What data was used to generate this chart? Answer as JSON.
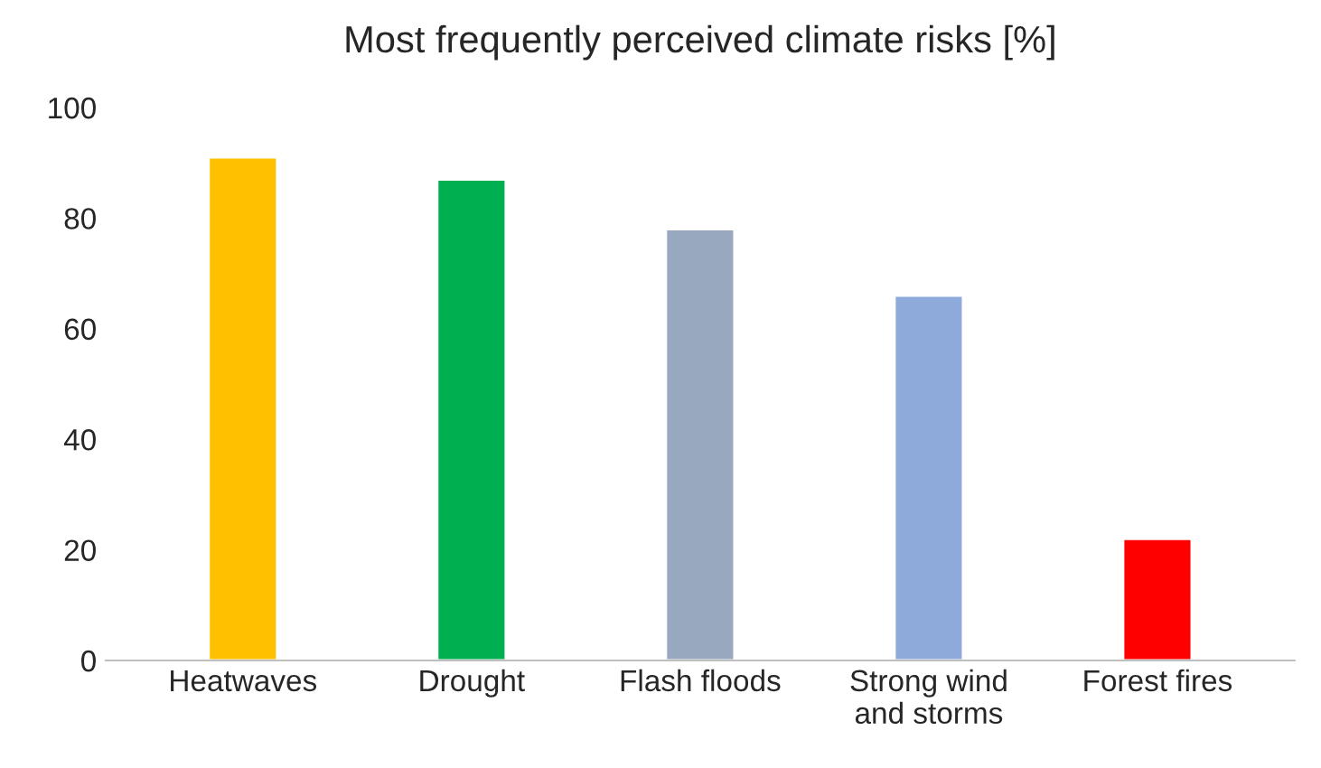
{
  "chart_data": {
    "type": "bar",
    "title": "Most frequently perceived climate risks [%]",
    "categories": [
      "Heatwaves",
      "Drought",
      "Flash floods",
      "Strong wind\nand storms",
      "Forest fires"
    ],
    "values": [
      91,
      87,
      78,
      66,
      22
    ],
    "colors": [
      "#ffc000",
      "#00b050",
      "#98a8bf",
      "#8eaadb",
      "#ff0000"
    ],
    "ylim": [
      0,
      100
    ],
    "yticks": [
      0,
      20,
      40,
      60,
      80,
      100
    ],
    "grid": false,
    "legend": false
  }
}
